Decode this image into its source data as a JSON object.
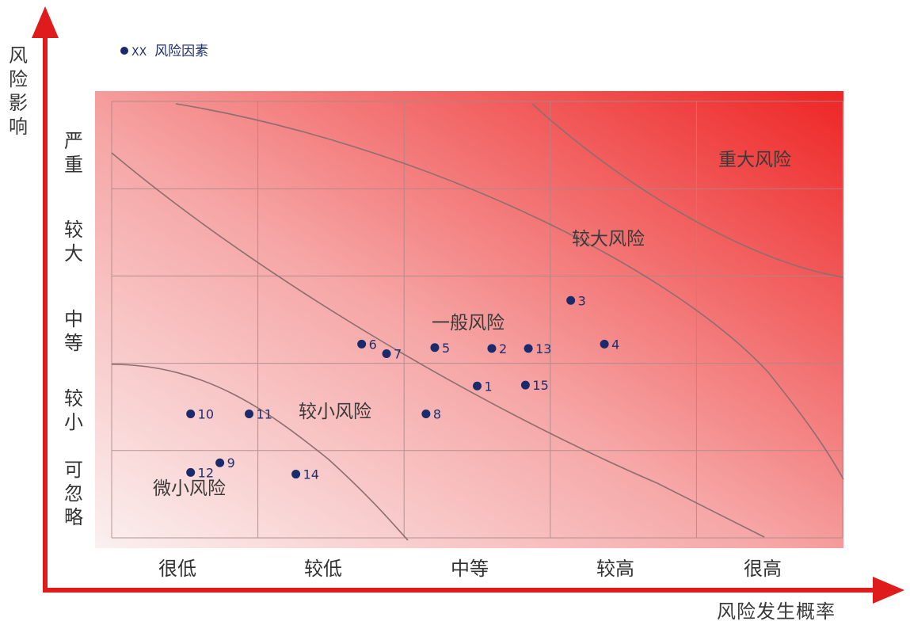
{
  "chart_data": {
    "type": "scatter",
    "xlabel": "风险发生概率",
    "ylabel": "风险影响",
    "x_categories": [
      "很低",
      "较低",
      "中等",
      "较高",
      "很高"
    ],
    "y_categories": [
      "可忽略",
      "较小",
      "中等",
      "较大",
      "严重"
    ],
    "legend": {
      "marker_text": "XX",
      "label": "风险因素"
    },
    "zones": [
      "微小风险",
      "较小风险",
      "一般风险",
      "较大风险",
      "重大风险"
    ],
    "points": [
      {
        "label": "1",
        "x": 2.5,
        "y": 1.74
      },
      {
        "label": "2",
        "x": 2.6,
        "y": 2.17
      },
      {
        "label": "3",
        "x": 3.14,
        "y": 2.72
      },
      {
        "label": "4",
        "x": 3.37,
        "y": 2.22
      },
      {
        "label": "5",
        "x": 2.21,
        "y": 2.18
      },
      {
        "label": "6",
        "x": 1.71,
        "y": 2.22
      },
      {
        "label": "7",
        "x": 1.88,
        "y": 2.11
      },
      {
        "label": "8",
        "x": 2.15,
        "y": 1.42
      },
      {
        "label": "9",
        "x": 0.74,
        "y": 0.86
      },
      {
        "label": "10",
        "x": 0.54,
        "y": 1.42
      },
      {
        "label": "11",
        "x": 0.94,
        "y": 1.42
      },
      {
        "label": "12",
        "x": 0.54,
        "y": 0.75
      },
      {
        "label": "13",
        "x": 2.85,
        "y": 2.17
      },
      {
        "label": "14",
        "x": 1.26,
        "y": 0.73
      },
      {
        "label": "15",
        "x": 2.83,
        "y": 1.75
      }
    ],
    "xlim": [
      0,
      5
    ],
    "ylim": [
      0,
      5
    ],
    "grid": true,
    "colors": {
      "low": "#fbeaea",
      "high": "#ee2a2a",
      "axis": "#e01b1b",
      "point": "#1a2a6c"
    }
  }
}
